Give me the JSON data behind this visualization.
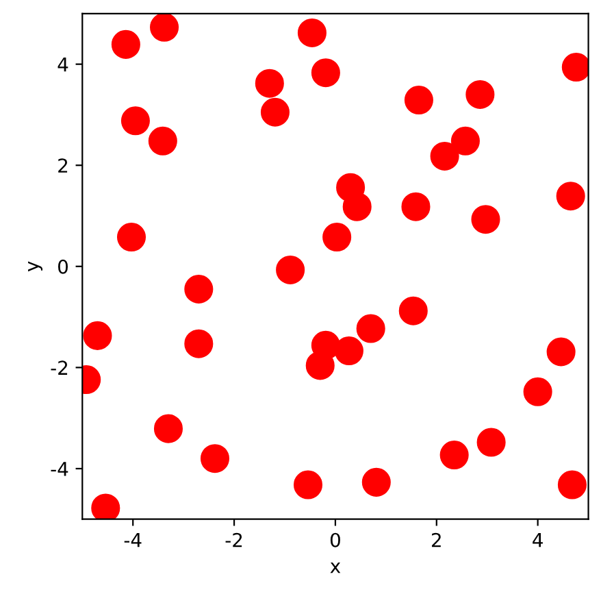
{
  "chart_data": {
    "type": "scatter",
    "xlabel": "x",
    "ylabel": "y",
    "xlim": [
      -5,
      5
    ],
    "ylim": [
      -5,
      5
    ],
    "xticks": [
      -4,
      -2,
      0,
      2,
      4
    ],
    "yticks": [
      -4,
      -2,
      0,
      2,
      4
    ],
    "marker": "circle",
    "grid": false,
    "legend": false,
    "series": [
      {
        "color": "#ff0000",
        "x": [
          -4.92,
          -4.7,
          -4.54,
          -4.14,
          -4.03,
          -3.95,
          -3.38,
          -3.41,
          -3.3,
          -2.7,
          -2.7,
          -2.38,
          -1.3,
          -1.19,
          -0.89,
          -0.54,
          -0.46,
          -0.19,
          -0.19,
          -0.3,
          0.03,
          0.3,
          0.43,
          0.27,
          0.7,
          0.81,
          1.65,
          1.59,
          1.54,
          2.16,
          2.35,
          2.57,
          2.86,
          2.97,
          3.08,
          4.0,
          4.46,
          4.65,
          4.68,
          4.76
        ],
        "values": [
          -2.24,
          -1.37,
          -4.78,
          4.39,
          0.58,
          2.88,
          4.73,
          2.48,
          -3.21,
          -0.45,
          -1.53,
          -3.8,
          3.62,
          3.05,
          -0.07,
          -4.32,
          4.62,
          3.83,
          -1.56,
          -1.96,
          0.58,
          1.56,
          1.18,
          -1.67,
          -1.23,
          -4.27,
          3.29,
          1.18,
          -0.88,
          2.18,
          -3.73,
          2.48,
          3.4,
          0.93,
          -3.48,
          -2.48,
          -1.69,
          1.39,
          -4.32,
          3.94
        ]
      }
    ]
  }
}
